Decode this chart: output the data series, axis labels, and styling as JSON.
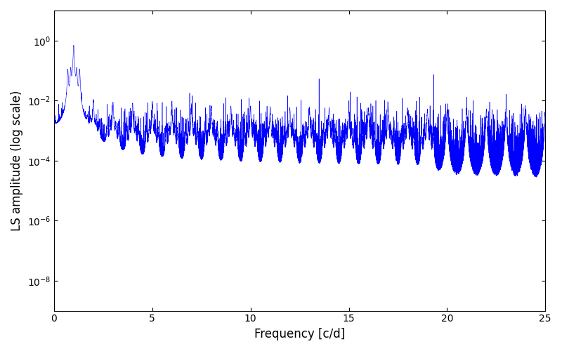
{
  "xlabel": "Frequency [c/d]",
  "ylabel": "LS amplitude (log scale)",
  "xlim": [
    0,
    25
  ],
  "ylim": [
    1e-09,
    10.0
  ],
  "line_color": "blue",
  "line_width": 0.4,
  "background_color": "#ffffff",
  "freq_max": 25.0,
  "n_points": 15000,
  "main_peak_freq": 1.0,
  "main_peak_amp": 0.7,
  "yticks": [
    1e-08,
    1e-06,
    0.0001,
    0.01,
    1.0
  ],
  "xticks": [
    0,
    5,
    10,
    15,
    20,
    25
  ],
  "figsize": [
    8.0,
    5.0
  ],
  "dpi": 100
}
